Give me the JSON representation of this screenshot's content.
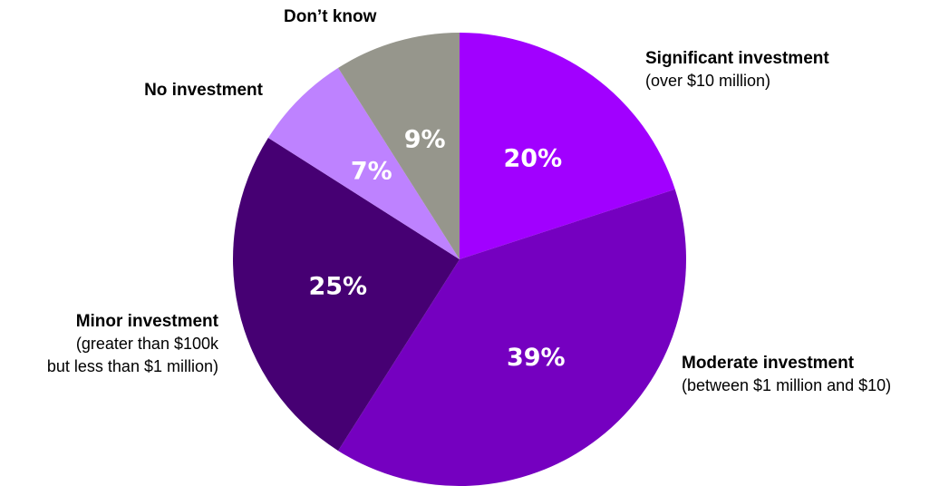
{
  "chart_data": {
    "type": "pie",
    "slices": [
      {
        "key": "significant",
        "name": "Significant investment",
        "description": "(over $10 million)",
        "value": 20,
        "label": "20%",
        "color": "#a100ff"
      },
      {
        "key": "moderate",
        "name": "Moderate investment",
        "description": "(between $1 million and $10)",
        "value": 39,
        "label": "39%",
        "color": "#7500c0"
      },
      {
        "key": "minor",
        "name": "Minor investment",
        "description": "(greater than $100k but less than $1 million)",
        "description_lines": [
          "(greater than $100k",
          "but less than $1 million)"
        ],
        "value": 25,
        "label": "25%",
        "color": "#460073"
      },
      {
        "key": "no_investment",
        "name": "No investment",
        "description": "",
        "value": 7,
        "label": "7%",
        "color": "#be82ff"
      },
      {
        "key": "dont_know",
        "name": "Don’t know",
        "description": "",
        "value": 9,
        "label": "9%",
        "color": "#96968c"
      }
    ],
    "start_angle": "12 o'clock",
    "direction": "clockwise"
  }
}
